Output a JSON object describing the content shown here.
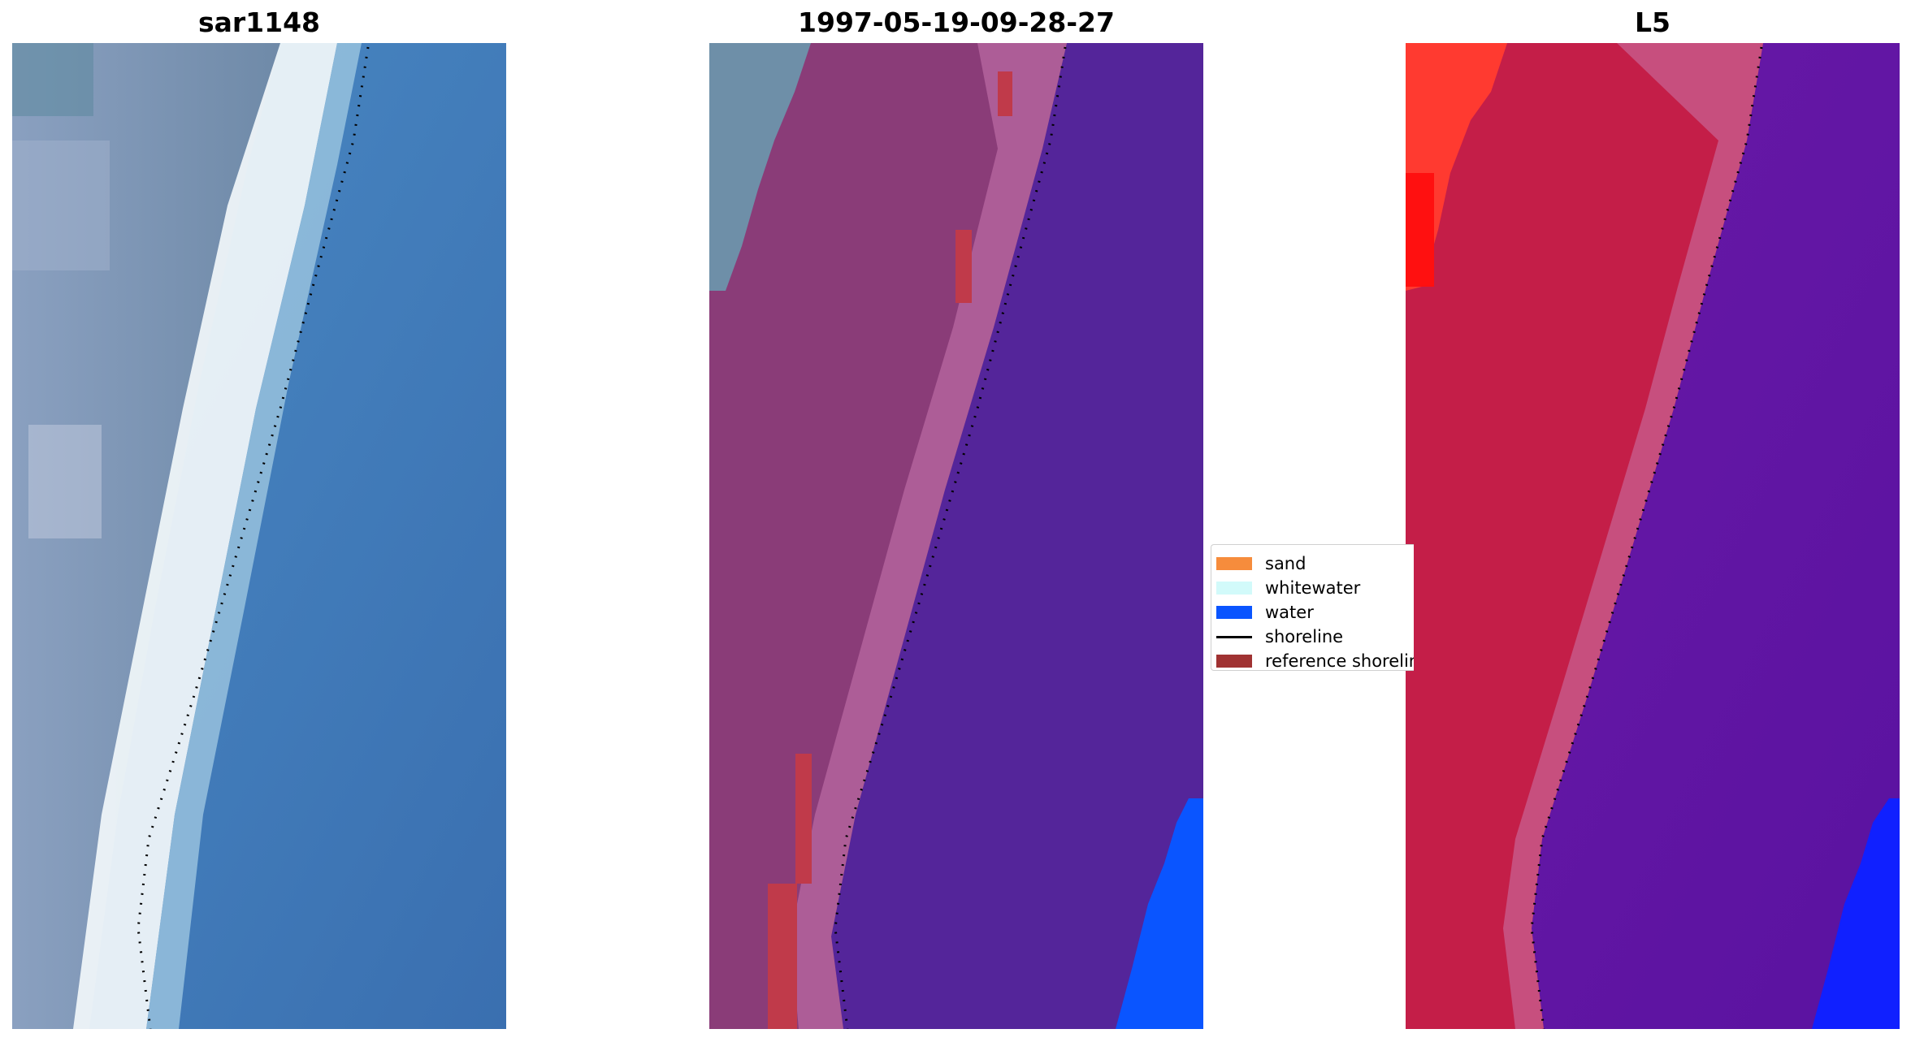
{
  "panels": [
    {
      "title": "sar1148",
      "colors": {
        "land": "#6f8fa8",
        "surf": "#eef4f8",
        "water": "#3f84c0"
      }
    },
    {
      "title": "1997-05-19-09-28-27",
      "colors": {
        "sand": "#8a3c78",
        "band": "#b0609a",
        "water": "#54259a",
        "ref": "#c03a4a",
        "teal": "#6e8fa8",
        "blue": "#0a55ff"
      }
    },
    {
      "title": "L5",
      "colors": {
        "land": "#c41e48",
        "band": "#c86090",
        "water": "#6018a0",
        "bright": "#ff2a2a",
        "blue": "#1020ff"
      }
    }
  ],
  "legend": [
    {
      "label": "sand",
      "kind": "patch",
      "color": "#f68c3c"
    },
    {
      "label": "whitewater",
      "kind": "patch",
      "color": "#d2fafa"
    },
    {
      "label": "water",
      "kind": "patch",
      "color": "#0a55ff"
    },
    {
      "label": "shoreline",
      "kind": "line",
      "color": "#000000"
    },
    {
      "label": "reference shoreline",
      "kind": "patch",
      "color": "#a03232"
    }
  ],
  "shoreline": {
    "color": "#000000",
    "style": "dotted"
  }
}
